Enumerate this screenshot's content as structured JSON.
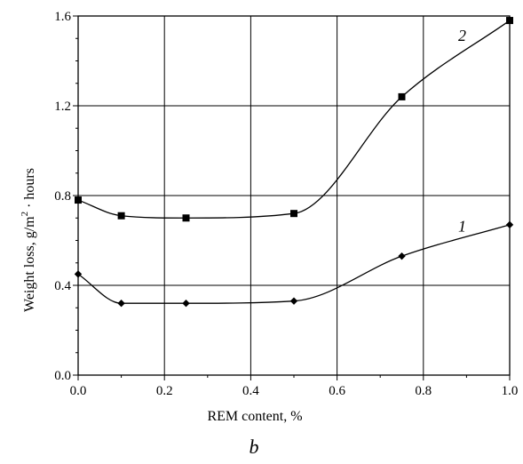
{
  "chart_data": {
    "type": "line",
    "panel_label": "b",
    "xlabel": "REM content, %",
    "ylabel_main": "Weight loss, g/m",
    "ylabel_sup": "2",
    "ylabel_tail": " · hours",
    "xlim": [
      0.0,
      1.0
    ],
    "ylim": [
      0.0,
      1.6
    ],
    "x_ticks": [
      "0.0",
      "0.2",
      "0.4",
      "0.6",
      "0.8",
      "1.0"
    ],
    "y_ticks": [
      "0.0",
      "0.4",
      "0.8",
      "1.2",
      "1.6"
    ],
    "grid": true,
    "series": [
      {
        "label": "1",
        "marker": "diamond",
        "x": [
          0.0,
          0.1,
          0.25,
          0.5,
          0.75,
          1.0
        ],
        "y": [
          0.45,
          0.32,
          0.32,
          0.33,
          0.53,
          0.67
        ]
      },
      {
        "label": "2",
        "marker": "square",
        "x": [
          0.0,
          0.1,
          0.25,
          0.5,
          0.75,
          1.0
        ],
        "y": [
          0.78,
          0.71,
          0.7,
          0.72,
          1.24,
          1.58
        ]
      }
    ]
  }
}
